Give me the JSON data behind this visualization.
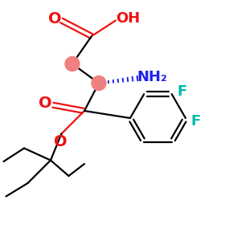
{
  "bg_color": "#ffffff",
  "bond_color": "#000000",
  "red_color": "#ee1111",
  "blue_color": "#2222ee",
  "cyan_color": "#00bbaa",
  "pink_color": "#f08080",
  "figsize": [
    3.0,
    3.0
  ],
  "dpi": 100,
  "xlim": [
    0,
    10
  ],
  "ylim": [
    0,
    10
  ]
}
